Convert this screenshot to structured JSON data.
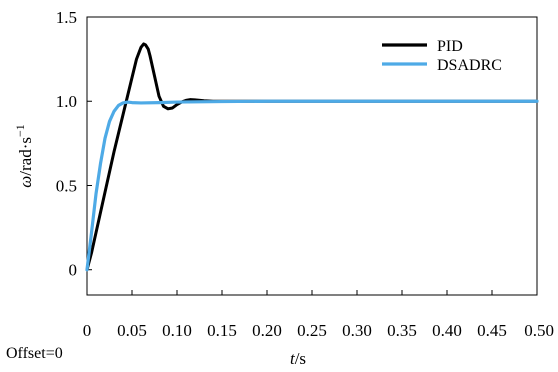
{
  "chart_data": {
    "type": "line",
    "xlabel_italic": "t",
    "xlabel_rest": "/s",
    "ylabel_italic": "ω",
    "ylabel_rest": "/rad·s",
    "ylabel_sup": "−1",
    "xlim": [
      0,
      0.5
    ],
    "ylim": [
      -0.15,
      1.5
    ],
    "x_ticks": [
      "0",
      "0.05",
      "0.10",
      "0.15",
      "0.20",
      "0.25",
      "0.30",
      "0.35",
      "0.40",
      "0.45",
      "0.50"
    ],
    "x_tick_values": [
      0,
      0.05,
      0.1,
      0.15,
      0.2,
      0.25,
      0.3,
      0.35,
      0.4,
      0.45,
      0.5
    ],
    "y_ticks": [
      "0",
      "0.5",
      "1.0",
      "1.5"
    ],
    "y_tick_values": [
      0,
      0.5,
      1.0,
      1.5
    ],
    "grid": false,
    "legend_position": "top-right",
    "annotation": "Offset=0",
    "series": [
      {
        "name": "PID",
        "color": "#000000",
        "x": [
          0,
          0.005,
          0.01,
          0.02,
          0.03,
          0.04,
          0.05,
          0.055,
          0.06,
          0.063,
          0.065,
          0.068,
          0.07,
          0.075,
          0.08,
          0.085,
          0.09,
          0.095,
          0.1,
          0.105,
          0.11,
          0.115,
          0.12,
          0.13,
          0.14,
          0.15,
          0.2,
          0.3,
          0.4,
          0.5
        ],
        "y": [
          0,
          0.1,
          0.22,
          0.46,
          0.7,
          0.92,
          1.14,
          1.25,
          1.32,
          1.34,
          1.335,
          1.31,
          1.27,
          1.15,
          1.03,
          0.97,
          0.955,
          0.96,
          0.98,
          0.995,
          1.005,
          1.01,
          1.008,
          1.003,
          1.0,
          1.0,
          1.0,
          1.0,
          1.0,
          1.0
        ]
      },
      {
        "name": "DSADRC",
        "color": "#4eaae6",
        "x": [
          0,
          0.005,
          0.01,
          0.015,
          0.02,
          0.025,
          0.03,
          0.035,
          0.04,
          0.045,
          0.05,
          0.06,
          0.08,
          0.1,
          0.15,
          0.2,
          0.3,
          0.4,
          0.5
        ],
        "y": [
          0,
          0.22,
          0.45,
          0.63,
          0.78,
          0.88,
          0.94,
          0.975,
          0.99,
          0.995,
          0.992,
          0.99,
          0.992,
          0.995,
          0.998,
          1.0,
          1.0,
          1.0,
          1.0
        ]
      }
    ]
  }
}
